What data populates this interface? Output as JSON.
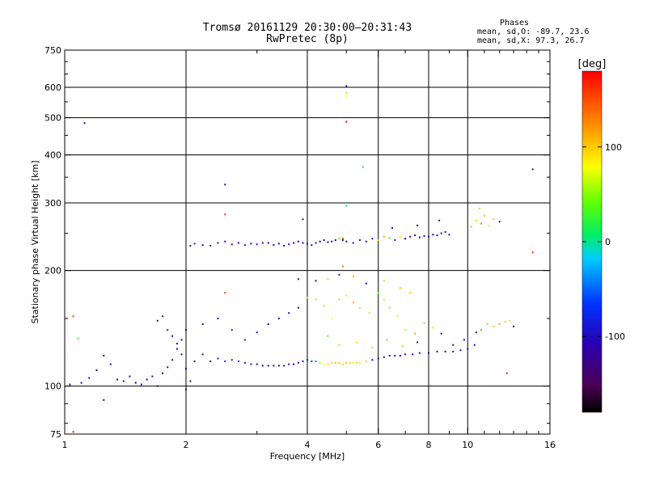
{
  "chart_data": {
    "type": "scatter",
    "title": "Tromsø 20161129 20:30:00–20:31:43",
    "subtitle": "RwPretec (8p)",
    "xlabel": "Frequency [MHz]",
    "ylabel": "Stationary phase Virtual Height [km]",
    "x_scale": "log",
    "y_scale": "log",
    "xlim": [
      1,
      16
    ],
    "ylim": [
      75,
      750
    ],
    "x_ticks": [
      1,
      2,
      4,
      6,
      8,
      10,
      16
    ],
    "x_tick_labels": [
      "1",
      "2",
      "4",
      "6",
      "8",
      "10",
      "16"
    ],
    "y_ticks": [
      75,
      100,
      200,
      300,
      400,
      500,
      600,
      750
    ],
    "y_tick_labels": [
      "75",
      "100",
      "200",
      "300",
      "400",
      "500",
      "600",
      "750"
    ],
    "grid": true,
    "phases_box": {
      "heading": "Phases",
      "line_o": "mean, sd,O: -89.7, 23.6",
      "line_x": "mean, sd,X:  97.3, 26.7"
    },
    "colorbar": {
      "unit": "[deg]",
      "range": [
        -180,
        180
      ],
      "tick_values": [
        100,
        0,
        -100
      ],
      "tick_labels": [
        "100",
        "0",
        "-100"
      ],
      "colormap": "black-purple-blue-cyan-green-yellow-orange-red"
    },
    "series": [
      {
        "points": [
          [
            1.03,
            101,
            -110
          ],
          [
            1.05,
            152,
            160
          ],
          [
            1.08,
            133,
            30
          ],
          [
            1.12,
            484,
            -120
          ],
          [
            1.1,
            102,
            -120
          ],
          [
            1.15,
            105,
            -115
          ],
          [
            1.2,
            110,
            -120
          ],
          [
            1.25,
            120,
            -110
          ],
          [
            1.3,
            114,
            -115
          ],
          [
            1.35,
            104,
            -120
          ],
          [
            1.4,
            103,
            -110
          ],
          [
            1.45,
            106,
            -115
          ],
          [
            1.5,
            102,
            -120
          ],
          [
            1.55,
            101,
            -110
          ],
          [
            1.6,
            104,
            -120
          ],
          [
            1.65,
            106,
            -115
          ],
          [
            1.7,
            100,
            -115
          ],
          [
            1.75,
            108,
            -110
          ],
          [
            1.8,
            112,
            -115
          ],
          [
            1.85,
            117,
            -105
          ],
          [
            1.9,
            125,
            -110
          ],
          [
            1.95,
            132,
            -115
          ],
          [
            2.0,
            140,
            -110
          ],
          [
            1.7,
            148,
            -100
          ],
          [
            1.75,
            152,
            -110
          ],
          [
            1.8,
            140,
            -100
          ],
          [
            1.85,
            135,
            -105
          ],
          [
            1.9,
            129,
            -100
          ],
          [
            1.95,
            121,
            -100
          ],
          [
            2.0,
            111,
            -105
          ],
          [
            2.05,
            103,
            -115
          ],
          [
            2.1,
            116,
            -110
          ],
          [
            2.2,
            121,
            -105
          ],
          [
            2.3,
            116,
            -105
          ],
          [
            2.4,
            118,
            -90
          ],
          [
            2.5,
            116,
            -85
          ],
          [
            2.6,
            117,
            -95
          ],
          [
            2.7,
            116,
            -100
          ],
          [
            2.8,
            115,
            -100
          ],
          [
            2.9,
            114,
            -105
          ],
          [
            3.0,
            114,
            -100
          ],
          [
            3.1,
            113,
            -110
          ],
          [
            3.2,
            113,
            -105
          ],
          [
            3.3,
            113,
            -105
          ],
          [
            3.4,
            113,
            -110
          ],
          [
            3.5,
            113,
            -100
          ],
          [
            3.6,
            114,
            -105
          ],
          [
            3.7,
            114,
            -100
          ],
          [
            3.8,
            115,
            -95
          ],
          [
            3.9,
            116,
            -90
          ],
          [
            4.0,
            117,
            -85
          ],
          [
            4.1,
            116,
            -60
          ],
          [
            4.2,
            116,
            -40
          ],
          [
            4.3,
            115,
            60
          ],
          [
            4.4,
            114,
            80
          ],
          [
            4.5,
            114,
            95
          ],
          [
            4.6,
            115,
            100
          ],
          [
            4.7,
            115,
            110
          ],
          [
            4.8,
            115,
            100
          ],
          [
            4.9,
            114,
            95
          ],
          [
            5.0,
            115,
            110
          ],
          [
            5.1,
            115,
            100
          ],
          [
            5.2,
            115,
            95
          ],
          [
            5.3,
            115,
            100
          ],
          [
            5.4,
            115,
            90
          ],
          [
            5.6,
            116,
            100
          ],
          [
            5.8,
            117,
            -110
          ],
          [
            6.0,
            118,
            -105
          ],
          [
            6.2,
            119,
            -100
          ],
          [
            6.4,
            120,
            -110
          ],
          [
            6.6,
            120,
            -105
          ],
          [
            6.8,
            120,
            -110
          ],
          [
            7.0,
            121,
            -100
          ],
          [
            7.3,
            121,
            -105
          ],
          [
            7.6,
            122,
            -100
          ],
          [
            8.0,
            122,
            -110
          ],
          [
            8.4,
            123,
            -105
          ],
          [
            8.8,
            123,
            -100
          ],
          [
            9.2,
            123,
            -110
          ],
          [
            9.6,
            124,
            -105
          ],
          [
            10.0,
            125,
            -110
          ],
          [
            10.4,
            128,
            -100
          ],
          [
            10.8,
            140,
            130
          ],
          [
            11.2,
            145,
            110
          ],
          [
            11.6,
            143,
            100
          ],
          [
            12.0,
            145,
            110
          ],
          [
            12.4,
            147,
            100
          ],
          [
            12.7,
            148,
            90
          ],
          [
            13.0,
            143,
            -110
          ],
          [
            10.5,
            138,
            -110
          ],
          [
            9.8,
            132,
            -100
          ],
          [
            9.2,
            128,
            -110
          ],
          [
            8.6,
            137,
            -100
          ],
          [
            8.2,
            142,
            95
          ],
          [
            7.8,
            146,
            110
          ],
          [
            7.4,
            137,
            120
          ],
          [
            7.0,
            140,
            60
          ],
          [
            6.7,
            152,
            90
          ],
          [
            6.4,
            160,
            110
          ],
          [
            6.2,
            168,
            100
          ],
          [
            6.0,
            175,
            40
          ],
          [
            5.7,
            155,
            95
          ],
          [
            5.4,
            160,
            100
          ],
          [
            5.2,
            165,
            110
          ],
          [
            5.0,
            172,
            95
          ],
          [
            4.8,
            168,
            100
          ],
          [
            4.6,
            150,
            80
          ],
          [
            4.4,
            162,
            100
          ],
          [
            4.2,
            168,
            105
          ],
          [
            4.0,
            170,
            100
          ],
          [
            3.8,
            160,
            -100
          ],
          [
            3.6,
            155,
            -110
          ],
          [
            3.4,
            150,
            -100
          ],
          [
            3.2,
            145,
            -105
          ],
          [
            3.0,
            138,
            -110
          ],
          [
            2.8,
            132,
            -100
          ],
          [
            2.6,
            140,
            -105
          ],
          [
            2.4,
            150,
            -110
          ],
          [
            2.2,
            145,
            -100
          ],
          [
            4.5,
            135,
            40
          ],
          [
            4.8,
            128,
            100
          ],
          [
            5.3,
            130,
            95
          ],
          [
            5.8,
            126,
            60
          ],
          [
            6.3,
            132,
            110
          ],
          [
            6.9,
            127,
            100
          ],
          [
            7.5,
            130,
            -100
          ],
          [
            4.2,
            188,
            -110
          ],
          [
            4.5,
            190,
            100
          ],
          [
            4.8,
            195,
            -100
          ],
          [
            5.2,
            193,
            110
          ],
          [
            5.6,
            185,
            -110
          ],
          [
            6.2,
            188,
            95
          ],
          [
            6.8,
            180,
            110
          ],
          [
            7.2,
            175,
            100
          ],
          [
            4.9,
            205,
            130
          ],
          [
            2.05,
            232,
            -100
          ],
          [
            2.1,
            235,
            -110
          ],
          [
            2.2,
            233,
            -105
          ],
          [
            2.3,
            232,
            -115
          ],
          [
            2.4,
            236,
            -100
          ],
          [
            2.5,
            238,
            -110
          ],
          [
            2.6,
            234,
            -105
          ],
          [
            2.7,
            236,
            -100
          ],
          [
            2.8,
            233,
            -110
          ],
          [
            2.9,
            235,
            -105
          ],
          [
            3.0,
            234,
            -110
          ],
          [
            3.1,
            236,
            -100
          ],
          [
            3.2,
            236,
            -105
          ],
          [
            3.3,
            233,
            -110
          ],
          [
            3.4,
            235,
            -100
          ],
          [
            3.5,
            232,
            -110
          ],
          [
            3.6,
            234,
            -105
          ],
          [
            3.7,
            236,
            -110
          ],
          [
            3.8,
            238,
            -100
          ],
          [
            3.9,
            236,
            -95
          ],
          [
            4.0,
            235,
            -100
          ],
          [
            4.1,
            233,
            -110
          ],
          [
            4.2,
            236,
            -105
          ],
          [
            4.3,
            238,
            -100
          ],
          [
            4.4,
            240,
            -110
          ],
          [
            4.5,
            237,
            -105
          ],
          [
            4.6,
            238,
            -100
          ],
          [
            4.7,
            240,
            -110
          ],
          [
            4.8,
            242,
            40
          ],
          [
            4.9,
            240,
            -100
          ],
          [
            5.0,
            238,
            -110
          ],
          [
            5.2,
            236,
            -105
          ],
          [
            5.4,
            240,
            -100
          ],
          [
            5.6,
            238,
            -110
          ],
          [
            5.8,
            242,
            -105
          ],
          [
            6.0,
            240,
            100
          ],
          [
            6.2,
            245,
            120
          ],
          [
            6.4,
            243,
            30
          ],
          [
            6.6,
            240,
            -100
          ],
          [
            6.8,
            244,
            90
          ],
          [
            7.0,
            242,
            -110
          ],
          [
            7.2,
            245,
            -100
          ],
          [
            7.4,
            247,
            -105
          ],
          [
            7.6,
            244,
            -110
          ],
          [
            7.8,
            246,
            -100
          ],
          [
            8.0,
            245,
            -105
          ],
          [
            8.2,
            248,
            -110
          ],
          [
            8.4,
            247,
            -100
          ],
          [
            8.6,
            250,
            -105
          ],
          [
            8.8,
            252,
            -110
          ],
          [
            9.0,
            248,
            -100
          ],
          [
            10.2,
            260,
            110
          ],
          [
            10.5,
            270,
            100
          ],
          [
            10.8,
            265,
            130
          ],
          [
            11.0,
            278,
            110
          ],
          [
            11.3,
            262,
            90
          ],
          [
            11.6,
            272,
            100
          ],
          [
            12.0,
            268,
            -110
          ],
          [
            10.7,
            290,
            100
          ],
          [
            6.5,
            258,
            -110
          ],
          [
            7.5,
            262,
            -105
          ],
          [
            8.5,
            270,
            -100
          ],
          [
            4.9,
            242,
            170
          ],
          [
            2.5,
            335,
            -110
          ],
          [
            2.5,
            280,
            160
          ],
          [
            2.5,
            175,
            160
          ],
          [
            3.9,
            272,
            -100
          ],
          [
            5.0,
            605,
            -110
          ],
          [
            5.0,
            580,
            60
          ],
          [
            5.0,
            570,
            80
          ],
          [
            5.0,
            488,
            175
          ],
          [
            5.0,
            295,
            10
          ],
          [
            5.5,
            372,
            10
          ],
          [
            14.5,
            367,
            -115
          ],
          [
            14.5,
            223,
            170
          ],
          [
            1.05,
            76,
            175
          ],
          [
            12.5,
            108,
            175
          ],
          [
            1.25,
            92,
            -110
          ],
          [
            2.0,
            98,
            -110
          ],
          [
            3.8,
            190,
            -100
          ]
        ]
      }
    ]
  }
}
